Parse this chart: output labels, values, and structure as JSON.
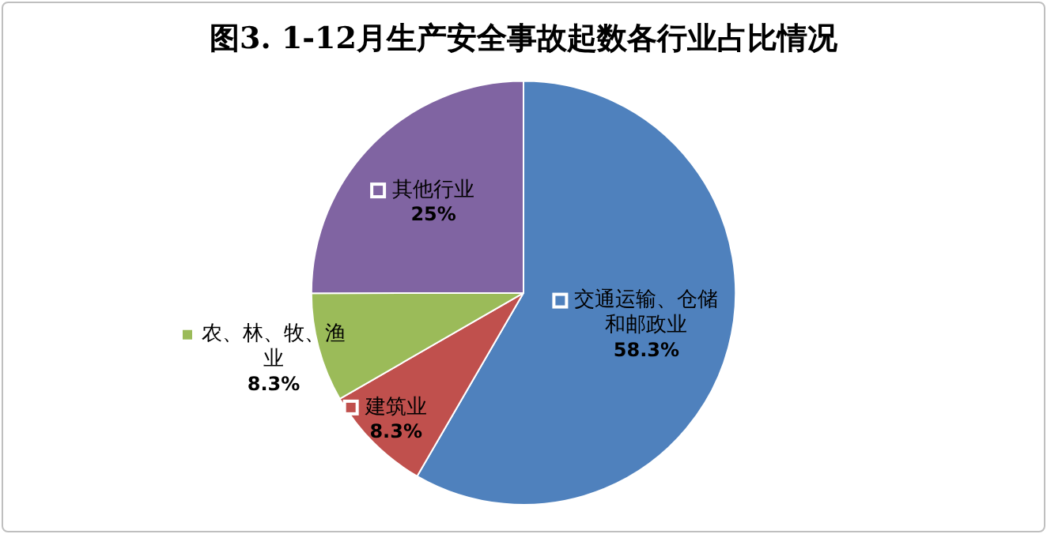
{
  "chart_data": {
    "type": "pie",
    "title": "图3. 1-12月生产安全事故起数各行业占比情况",
    "categories": [
      "交通运输、仓储和邮政业",
      "建筑业",
      "农、林、牧、渔业",
      "其他行业"
    ],
    "values": [
      58.3,
      8.3,
      8.3,
      25
    ],
    "value_labels": [
      "58.3%",
      "8.3%",
      "8.3%",
      "25%"
    ],
    "colors": [
      "#4f81bd",
      "#c0504d",
      "#9bbb59",
      "#8064a2"
    ],
    "legend": true
  }
}
